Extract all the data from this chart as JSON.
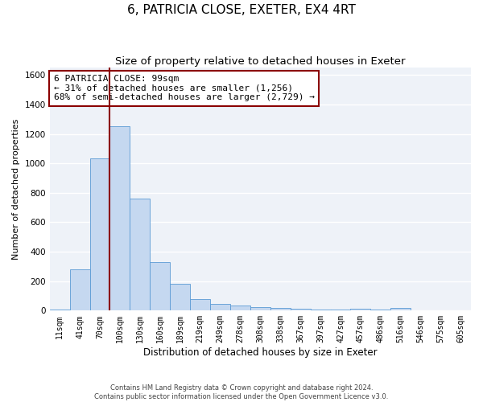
{
  "title": "6, PATRICIA CLOSE, EXETER, EX4 4RT",
  "subtitle": "Size of property relative to detached houses in Exeter",
  "xlabel": "Distribution of detached houses by size in Exeter",
  "ylabel": "Number of detached properties",
  "categories": [
    "11sqm",
    "41sqm",
    "70sqm",
    "100sqm",
    "130sqm",
    "160sqm",
    "189sqm",
    "219sqm",
    "249sqm",
    "278sqm",
    "308sqm",
    "338sqm",
    "367sqm",
    "397sqm",
    "427sqm",
    "457sqm",
    "486sqm",
    "516sqm",
    "546sqm",
    "575sqm",
    "605sqm"
  ],
  "values": [
    10,
    280,
    1035,
    1250,
    760,
    330,
    180,
    80,
    48,
    35,
    25,
    20,
    15,
    8,
    8,
    15,
    8,
    20,
    3,
    3,
    3
  ],
  "bar_color": "#c5d8f0",
  "bar_edgecolor": "#5b9bd5",
  "vline_index": 3,
  "vline_color": "#8b0000",
  "annotation_text": "6 PATRICIA CLOSE: 99sqm\n← 31% of detached houses are smaller (1,256)\n68% of semi-detached houses are larger (2,729) →",
  "annotation_box_edgecolor": "#8b0000",
  "annotation_box_facecolor": "white",
  "ylim": [
    0,
    1650
  ],
  "yticks": [
    0,
    200,
    400,
    600,
    800,
    1000,
    1200,
    1400,
    1600
  ],
  "background_color": "#eef2f8",
  "grid_color": "white",
  "footer_line1": "Contains HM Land Registry data © Crown copyright and database right 2024.",
  "footer_line2": "Contains public sector information licensed under the Open Government Licence v3.0.",
  "title_fontsize": 11,
  "subtitle_fontsize": 9.5,
  "xlabel_fontsize": 8.5,
  "ylabel_fontsize": 8,
  "annotation_fontsize": 8,
  "tick_fontsize": 7,
  "ytick_fontsize": 7.5
}
